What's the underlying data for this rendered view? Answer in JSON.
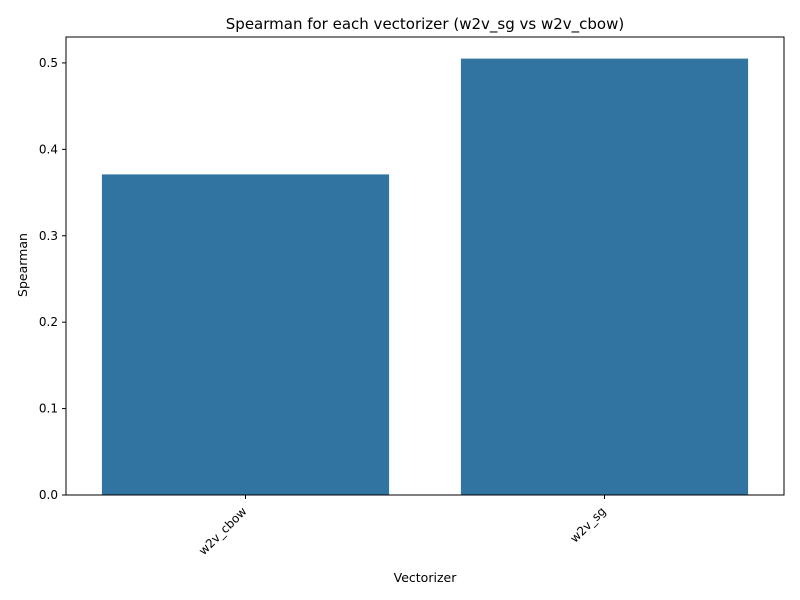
{
  "chart_data": {
    "type": "bar",
    "title": "Spearman for each vectorizer (w2v_sg vs w2v_cbow)",
    "xlabel": "Vectorizer",
    "ylabel": "Spearman",
    "categories": [
      "w2v_cbow",
      "w2v_sg"
    ],
    "values": [
      0.371,
      0.505
    ],
    "ylim": [
      0,
      0.53
    ],
    "yticks": [
      0.0,
      0.1,
      0.2,
      0.3,
      0.4,
      0.5
    ],
    "ytick_labels": [
      "0.0",
      "0.1",
      "0.2",
      "0.3",
      "0.4",
      "0.5"
    ],
    "bar_color": "#3274a1",
    "grid": false,
    "legend": "none"
  }
}
